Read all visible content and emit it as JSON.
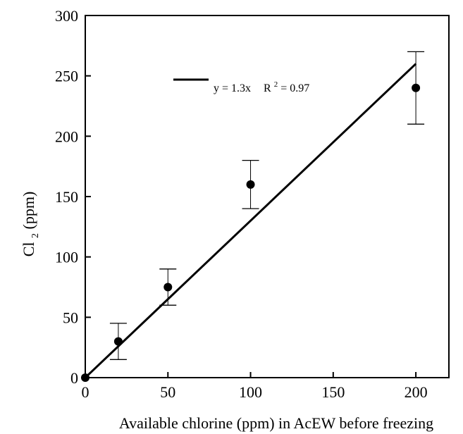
{
  "chart_data": {
    "type": "scatter",
    "xlabel": "Available chlorine (ppm) in AcEW before freezing",
    "ylabel_main": "Cl",
    "ylabel_sub": "2",
    "ylabel_unit": " (ppm)",
    "xlim": [
      0,
      220
    ],
    "ylim": [
      0,
      300
    ],
    "xticks": [
      0,
      50,
      100,
      150,
      200
    ],
    "yticks": [
      0,
      50,
      100,
      150,
      200,
      250,
      300
    ],
    "grid": false,
    "legend_position": "top",
    "points": [
      {
        "x": 0,
        "y": 0,
        "err_low": 0,
        "err_high": 0
      },
      {
        "x": 20,
        "y": 30,
        "err_low": 15,
        "err_high": 45
      },
      {
        "x": 50,
        "y": 75,
        "err_low": 60,
        "err_high": 90
      },
      {
        "x": 100,
        "y": 160,
        "err_low": 140,
        "err_high": 180
      },
      {
        "x": 200,
        "y": 240,
        "err_low": 210,
        "err_high": 270
      }
    ],
    "fit_line": {
      "slope": 1.3,
      "x_range": [
        0,
        200
      ],
      "equation": "y = 1.3x",
      "r2_prefix": "R",
      "r2_sup": "2",
      "r2_value": "= 0.97"
    }
  }
}
